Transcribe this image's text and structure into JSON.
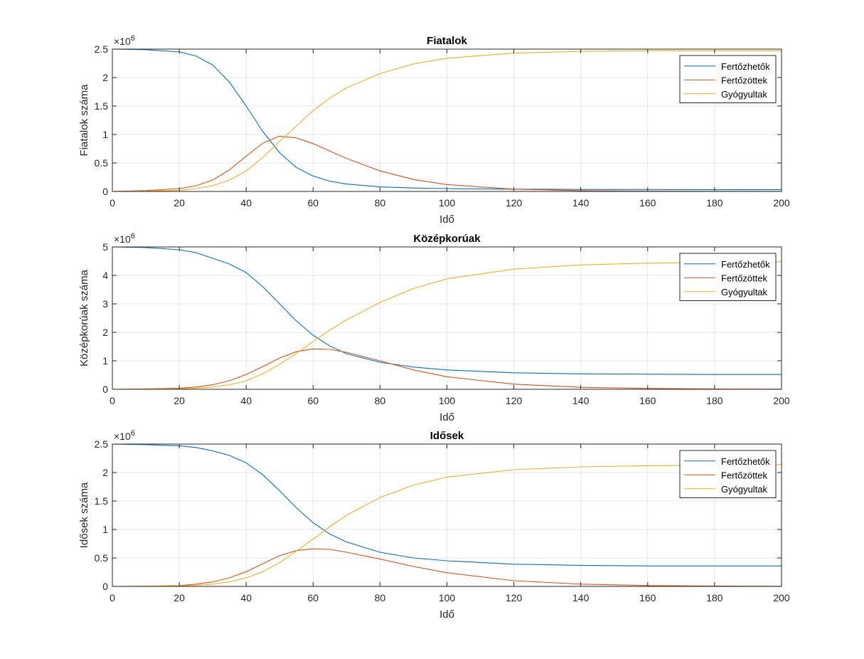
{
  "figure": {
    "background": "#ffffff",
    "axes_color": "#262626",
    "grid_color": "#e6e6e6"
  },
  "chart_data": [
    {
      "type": "line",
      "title": "Fiatalok",
      "xlabel": "Idő",
      "ylabel": "Fiatalok száma",
      "exponent_label": "×10^6",
      "xlim": [
        0,
        200
      ],
      "ylim": [
        0,
        2.5
      ],
      "xticks": [
        0,
        20,
        40,
        60,
        80,
        100,
        120,
        140,
        160,
        180,
        200
      ],
      "yticks": [
        0,
        0.5,
        1,
        1.5,
        2,
        2.5
      ],
      "ytick_labels": [
        "0",
        "0.5",
        "1",
        "1.5",
        "2",
        "2.5"
      ],
      "grid": true,
      "legend_position": "top-right",
      "x": [
        0,
        10,
        20,
        25,
        30,
        35,
        40,
        45,
        50,
        55,
        60,
        65,
        70,
        80,
        90,
        100,
        120,
        140,
        160,
        180,
        200
      ],
      "series": [
        {
          "name": "Fertőzhetők",
          "color": "#0072BD",
          "values": [
            2.5,
            2.49,
            2.45,
            2.38,
            2.22,
            1.92,
            1.5,
            1.05,
            0.68,
            0.42,
            0.27,
            0.18,
            0.13,
            0.08,
            0.06,
            0.05,
            0.04,
            0.035,
            0.033,
            0.031,
            0.03
          ]
        },
        {
          "name": "Fertőzöttek",
          "color": "#D95319",
          "values": [
            0.0,
            0.015,
            0.05,
            0.1,
            0.2,
            0.38,
            0.62,
            0.85,
            0.97,
            0.94,
            0.84,
            0.71,
            0.58,
            0.36,
            0.21,
            0.12,
            0.04,
            0.013,
            0.005,
            0.002,
            0.001
          ]
        },
        {
          "name": "Gyógyultak",
          "color": "#EDB120",
          "values": [
            0.0,
            0.005,
            0.02,
            0.05,
            0.1,
            0.2,
            0.36,
            0.6,
            0.88,
            1.15,
            1.42,
            1.64,
            1.82,
            2.07,
            2.24,
            2.34,
            2.43,
            2.46,
            2.47,
            2.47,
            2.47
          ]
        }
      ]
    },
    {
      "type": "line",
      "title": "Középkorúak",
      "xlabel": "Idő",
      "ylabel": "Középkorúak száma",
      "exponent_label": "×10^6",
      "xlim": [
        0,
        200
      ],
      "ylim": [
        0,
        5
      ],
      "xticks": [
        0,
        20,
        40,
        60,
        80,
        100,
        120,
        140,
        160,
        180,
        200
      ],
      "yticks": [
        0,
        1,
        2,
        3,
        4,
        5
      ],
      "ytick_labels": [
        "0",
        "1",
        "2",
        "3",
        "4",
        "5"
      ],
      "grid": true,
      "legend_position": "top-right",
      "x": [
        0,
        10,
        20,
        25,
        30,
        35,
        40,
        45,
        50,
        55,
        60,
        65,
        70,
        80,
        90,
        100,
        120,
        140,
        160,
        180,
        200
      ],
      "series": [
        {
          "name": "Fertőzhetők",
          "color": "#0072BD",
          "values": [
            5.0,
            4.98,
            4.9,
            4.8,
            4.6,
            4.4,
            4.1,
            3.6,
            3.0,
            2.4,
            1.9,
            1.52,
            1.25,
            0.95,
            0.78,
            0.68,
            0.58,
            0.54,
            0.53,
            0.52,
            0.52
          ]
        },
        {
          "name": "Fertőzöttek",
          "color": "#D95319",
          "values": [
            0.0,
            0.01,
            0.04,
            0.08,
            0.16,
            0.3,
            0.52,
            0.8,
            1.1,
            1.32,
            1.42,
            1.4,
            1.3,
            1.0,
            0.68,
            0.44,
            0.18,
            0.07,
            0.03,
            0.01,
            0.005
          ]
        },
        {
          "name": "Gyógyultak",
          "color": "#EDB120",
          "values": [
            0.0,
            0.004,
            0.02,
            0.04,
            0.08,
            0.16,
            0.3,
            0.55,
            0.88,
            1.26,
            1.68,
            2.08,
            2.44,
            3.05,
            3.54,
            3.88,
            4.22,
            4.37,
            4.43,
            4.46,
            4.48
          ]
        }
      ]
    },
    {
      "type": "line",
      "title": "Idősek",
      "xlabel": "Idő",
      "ylabel": "Idősek száma",
      "exponent_label": "×10^6",
      "xlim": [
        0,
        200
      ],
      "ylim": [
        0,
        2.5
      ],
      "xticks": [
        0,
        20,
        40,
        60,
        80,
        100,
        120,
        140,
        160,
        180,
        200
      ],
      "yticks": [
        0,
        0.5,
        1,
        1.5,
        2,
        2.5
      ],
      "ytick_labels": [
        "0",
        "0.5",
        "1",
        "1.5",
        "2",
        "2.5"
      ],
      "grid": true,
      "legend_position": "top-right",
      "x": [
        0,
        10,
        20,
        25,
        30,
        35,
        40,
        45,
        50,
        55,
        60,
        65,
        70,
        80,
        90,
        100,
        120,
        140,
        160,
        180,
        200
      ],
      "series": [
        {
          "name": "Fertőzhetők",
          "color": "#0072BD",
          "values": [
            2.5,
            2.49,
            2.47,
            2.44,
            2.38,
            2.3,
            2.17,
            1.96,
            1.68,
            1.38,
            1.12,
            0.92,
            0.78,
            0.6,
            0.5,
            0.45,
            0.39,
            0.37,
            0.36,
            0.36,
            0.36
          ]
        },
        {
          "name": "Fertőzöttek",
          "color": "#D95319",
          "values": [
            0.0,
            0.003,
            0.015,
            0.04,
            0.08,
            0.15,
            0.26,
            0.4,
            0.54,
            0.63,
            0.66,
            0.65,
            0.6,
            0.48,
            0.35,
            0.24,
            0.1,
            0.04,
            0.015,
            0.006,
            0.002
          ]
        },
        {
          "name": "Gyógyultak",
          "color": "#EDB120",
          "values": [
            0.0,
            0.002,
            0.01,
            0.02,
            0.04,
            0.08,
            0.15,
            0.26,
            0.42,
            0.62,
            0.83,
            1.05,
            1.25,
            1.56,
            1.78,
            1.92,
            2.05,
            2.1,
            2.12,
            2.13,
            2.14
          ]
        }
      ]
    }
  ]
}
